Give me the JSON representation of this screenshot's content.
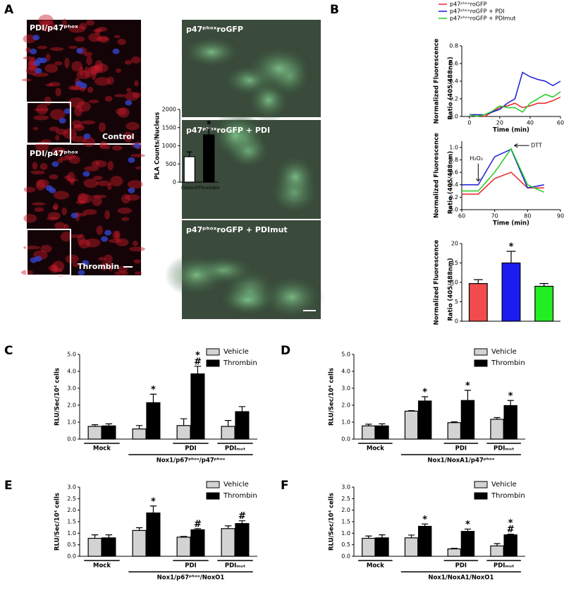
{
  "figure": {
    "panels": [
      "A",
      "B",
      "C",
      "D",
      "E",
      "F"
    ],
    "images": [
      "PDI/p47ᵖʰᵒˣ",
      "Control",
      "PDI/p47ᵖʰᵒˣ",
      "Thrombin",
      "p47ᵖʰᵒˣroGFP",
      "p47ᵖʰᵒˣroGFP + PDI",
      "p47ᵖʰᵒˣroGFP + PDImut"
    ]
  },
  "chart_data": [
    {
      "type": "bar",
      "ylabel": "PLA Counts/Nucleus",
      "categories": [
        "Control",
        "Thrombin"
      ],
      "values": [
        700,
        1300
      ],
      "errors": [
        130,
        160
      ],
      "colors": [
        "#ffffff",
        "#000000"
      ],
      "annotations": [
        null,
        [
          "*"
        ]
      ],
      "ylim": [
        0,
        2000
      ],
      "yticks": [
        0,
        500,
        1000,
        1500,
        2000
      ]
    },
    {
      "type": "line",
      "xlabel": "Time (min)",
      "ylabel": [
        "Normalized Fluorescence",
        "Ratio (405/488nm)"
      ],
      "x": [
        0,
        5,
        10,
        15,
        20,
        25,
        30,
        35,
        40,
        45,
        50,
        55,
        60
      ],
      "series": [
        {
          "name": "p47ᵖʰᵒˣroGFP",
          "color": "#e8262b",
          "values": [
            0.02,
            0.02,
            0.0,
            0.05,
            0.1,
            0.12,
            0.15,
            0.1,
            0.12,
            0.15,
            0.15,
            0.18,
            0.22
          ]
        },
        {
          "name": "p47ᵖʰᵒˣroGFP + PDI",
          "color": "#1c1cd8",
          "values": [
            0.02,
            0.02,
            0.02,
            0.05,
            0.08,
            0.15,
            0.2,
            0.5,
            0.45,
            0.42,
            0.4,
            0.35,
            0.4
          ]
        },
        {
          "name": "p47ᵖʰᵒˣroGFP + PDImut",
          "color": "#22cc22",
          "values": [
            0.02,
            0.0,
            0.02,
            0.06,
            0.12,
            0.1,
            0.1,
            0.05,
            0.15,
            0.2,
            0.25,
            0.22,
            0.28
          ]
        }
      ],
      "xlim": [
        -5,
        60
      ],
      "ylim": [
        0,
        0.8
      ],
      "xticks": [
        0,
        20,
        40,
        60
      ],
      "yticks": [
        {
          "value": 0,
          "label": "0.0"
        },
        0.2,
        0.4,
        0.6,
        0.8
      ],
      "legend": "top"
    },
    {
      "type": "line",
      "xlabel": "Time (min)",
      "ylabel": [
        "Normalized Fluorescence",
        "Ratio (405/488nm)"
      ],
      "x": [
        60,
        65,
        70,
        75,
        80,
        85
      ],
      "series": [
        {
          "color": "#e8262b",
          "values": [
            0.25,
            0.25,
            0.5,
            0.6,
            0.35,
            0.35
          ]
        },
        {
          "color": "#1c1cd8",
          "values": [
            0.4,
            0.4,
            0.85,
            0.97,
            0.35,
            0.4
          ]
        },
        {
          "color": "#22cc22",
          "values": [
            0.3,
            0.3,
            0.6,
            0.98,
            0.4,
            0.28
          ]
        }
      ],
      "xlim": [
        60,
        90
      ],
      "ylim": [
        0,
        1.1
      ],
      "xticks": [
        60,
        70,
        80,
        90
      ],
      "yticks": [
        {
          "value": 0,
          "label": "0.0"
        },
        0.2,
        0.4,
        0.6,
        0.8,
        {
          "value": 1,
          "label": "1.0"
        }
      ],
      "annotations": [
        "H₂O₂",
        "DTT"
      ]
    },
    {
      "type": "bar",
      "ylabel": [
        "Normalized Fluorescence",
        "Ratio (405/488nm)"
      ],
      "categories": [
        null,
        null,
        null
      ],
      "values": [
        9.7,
        15,
        9
      ],
      "errors": [
        1,
        3,
        0.7
      ],
      "colors": [
        "#f24b4b",
        "#1c1cf0",
        "#22ee22"
      ],
      "annotations": [
        null,
        [
          "*"
        ],
        null
      ],
      "ylim": [
        0,
        20
      ],
      "yticks": [
        0,
        5,
        10,
        15,
        20
      ]
    },
    {
      "type": "bar",
      "ylabel": "RLU/Sec/10⁴ cells",
      "categories": [
        "Mock",
        null,
        "PDI",
        "PDIₘᵤₜ"
      ],
      "group_label": "Nox1/p67ᵖʰᵒˣ/p47ᵖʰᵒˣ",
      "series": [
        {
          "name": "Vehicle",
          "color": "#d3d3d3",
          "values": [
            0.75,
            0.6,
            0.8,
            0.75
          ],
          "errors": [
            0.1,
            0.2,
            0.4,
            0.35
          ]
        },
        {
          "name": "Thrombin",
          "color": "#000000",
          "values": [
            0.78,
            2.15,
            3.85,
            1.62
          ],
          "errors": [
            0.12,
            0.5,
            0.45,
            0.3
          ],
          "annotations": [
            null,
            [
              "*"
            ],
            [
              "*",
              "#"
            ],
            null
          ]
        }
      ],
      "ylim": [
        0,
        5
      ],
      "yticks": [
        {
          "value": 0,
          "label": "0.0"
        },
        {
          "value": 1,
          "label": "1.0"
        },
        {
          "value": 2,
          "label": "2.0"
        },
        {
          "value": 3,
          "label": "3.0"
        },
        {
          "value": 4,
          "label": "4.0"
        },
        {
          "value": 5,
          "label": "5.0"
        }
      ]
    },
    {
      "type": "bar",
      "ylabel": "RLU/Sec/10⁴ cells",
      "categories": [
        "Mock",
        null,
        "PDI",
        "PDIₘᵤₜ"
      ],
      "group_label": "Nox1/NoxA1/p47ᵖʰᵒˣ",
      "series": [
        {
          "name": "Vehicle",
          "color": "#d3d3d3",
          "values": [
            0.78,
            1.65,
            0.97,
            1.17
          ],
          "errors": [
            0.1,
            0.03,
            0.05,
            0.1
          ]
        },
        {
          "name": "Thrombin",
          "color": "#000000",
          "values": [
            0.78,
            2.25,
            2.28,
            1.98
          ],
          "errors": [
            0.12,
            0.25,
            0.6,
            0.3
          ],
          "annotations": [
            null,
            [
              "*"
            ],
            [
              "*"
            ],
            [
              "*"
            ]
          ]
        }
      ],
      "ylim": [
        0,
        5
      ],
      "yticks": [
        {
          "value": 0,
          "label": "0.0"
        },
        {
          "value": 1,
          "label": "1.0"
        },
        {
          "value": 2,
          "label": "2.0"
        },
        {
          "value": 3,
          "label": "3.0"
        },
        {
          "value": 4,
          "label": "4.0"
        },
        {
          "value": 5,
          "label": "5.0"
        }
      ]
    },
    {
      "type": "bar",
      "ylabel": "RLU/Sec/10⁴ cells",
      "categories": [
        "Mock",
        null,
        "PDI",
        "PDIₘᵤₜ"
      ],
      "group_label": "Nox1/p67ᵖʰᵒˣ/NoxO1",
      "series": [
        {
          "name": "Vehicle",
          "color": "#d3d3d3",
          "values": [
            0.78,
            1.12,
            0.83,
            1.2
          ],
          "errors": [
            0.15,
            0.12,
            0.03,
            0.12
          ]
        },
        {
          "name": "Thrombin",
          "color": "#000000",
          "values": [
            0.8,
            1.88,
            1.15,
            1.42
          ],
          "errors": [
            0.13,
            0.3,
            0.05,
            0.12
          ],
          "annotations": [
            null,
            [
              "*"
            ],
            [
              "#"
            ],
            [
              "#"
            ]
          ]
        }
      ],
      "ylim": [
        0,
        3
      ],
      "yticks": [
        {
          "value": 0,
          "label": "0.0"
        },
        0.5,
        {
          "value": 1,
          "label": "1.0"
        },
        1.5,
        {
          "value": 2,
          "label": "2.0"
        },
        2.5,
        {
          "value": 3,
          "label": "3.0"
        }
      ]
    },
    {
      "type": "bar",
      "ylabel": "RLU/Sec/10⁴ cells",
      "categories": [
        "Mock",
        null,
        "PDI",
        "PDIₘᵤₜ"
      ],
      "group_label": "Nox1/NoxA1/NoxO1",
      "series": [
        {
          "name": "Vehicle",
          "color": "#d3d3d3",
          "values": [
            0.78,
            0.8,
            0.32,
            0.45
          ],
          "errors": [
            0.1,
            0.12,
            0.03,
            0.1
          ]
        },
        {
          "name": "Thrombin",
          "color": "#000000",
          "values": [
            0.8,
            1.3,
            1.08,
            0.93
          ],
          "errors": [
            0.13,
            0.1,
            0.1,
            0.03
          ],
          "annotations": [
            null,
            [
              "*"
            ],
            [
              "*"
            ],
            [
              "*",
              "#"
            ]
          ]
        }
      ],
      "ylim": [
        0,
        3
      ],
      "yticks": [
        {
          "value": 0,
          "label": "0.0"
        },
        0.5,
        {
          "value": 1,
          "label": "1.0"
        },
        1.5,
        {
          "value": 2,
          "label": "2.0"
        },
        2.5,
        {
          "value": 3,
          "label": "3.0"
        }
      ]
    }
  ]
}
